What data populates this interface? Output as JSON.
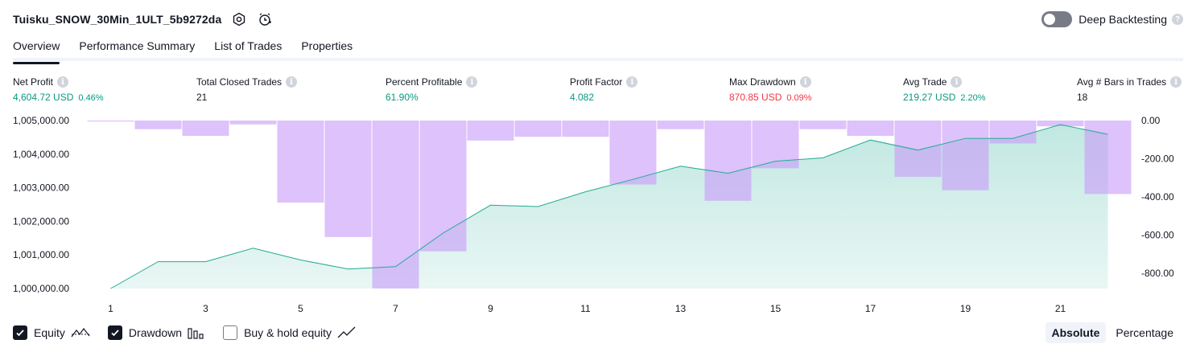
{
  "header": {
    "strategy_name": "Tuisku_SNOW_30Min_1ULT_5b9272da",
    "icons": [
      "settings-icon",
      "add-alert-icon"
    ]
  },
  "deep_backtesting": {
    "label": "Deep Backtesting",
    "enabled": false,
    "help_icon": "question-icon"
  },
  "tabs": [
    {
      "label": "Overview",
      "active": true
    },
    {
      "label": "Performance Summary",
      "active": false
    },
    {
      "label": "List of Trades",
      "active": false
    },
    {
      "label": "Properties",
      "active": false
    }
  ],
  "metrics": [
    {
      "label": "Net Profit",
      "value": "4,604.72 USD",
      "percent": "0.46%",
      "color": "#089981"
    },
    {
      "label": "Total Closed Trades",
      "value": "21",
      "percent": "",
      "color": "#131722"
    },
    {
      "label": "Percent Profitable",
      "value": "61.90%",
      "percent": "",
      "color": "#089981"
    },
    {
      "label": "Profit Factor",
      "value": "4.082",
      "percent": "",
      "color": "#089981"
    },
    {
      "label": "Max Drawdown",
      "value": "870.85 USD",
      "percent": "0.09%",
      "color": "#f23645"
    },
    {
      "label": "Avg Trade",
      "value": "219.27 USD",
      "percent": "2.20%",
      "color": "#089981"
    },
    {
      "label": "Avg # Bars in Trades",
      "value": "18",
      "percent": "",
      "color": "#131722"
    }
  ],
  "chart_data": {
    "type": "line",
    "x": [
      1,
      2,
      3,
      4,
      5,
      6,
      7,
      8,
      9,
      10,
      11,
      12,
      13,
      14,
      15,
      16,
      17,
      18,
      19,
      20,
      21,
      22
    ],
    "x_tick_labels": [
      "1",
      "3",
      "5",
      "7",
      "9",
      "11",
      "13",
      "15",
      "17",
      "19",
      "21"
    ],
    "left_axis": {
      "ylim": [
        1000000,
        1005000
      ],
      "tick_labels": [
        "1,005,000.00",
        "1,004,000.00",
        "1,003,000.00",
        "1,002,000.00",
        "1,001,000.00",
        "1,000,000.00"
      ],
      "tick_values": [
        1005000,
        1004000,
        1003000,
        1002000,
        1001000,
        1000000
      ]
    },
    "right_axis": {
      "ylim": [
        -880,
        0
      ],
      "tick_labels": [
        "0.00",
        "-200.00",
        "-400.00",
        "-600.00",
        "-800.00"
      ],
      "tick_values": [
        0,
        -200,
        -400,
        -600,
        -800
      ]
    },
    "series": [
      {
        "name": "Equity",
        "kind": "area",
        "axis": "left",
        "color": "#22ab94",
        "values": [
          1000000,
          1000800,
          1000800,
          1001200,
          1000850,
          1000580,
          1000650,
          1001650,
          1002480,
          1002440,
          1002880,
          1003250,
          1003640,
          1003430,
          1003790,
          1003890,
          1004420,
          1004120,
          1004470,
          1004470,
          1004880,
          1004590
        ]
      },
      {
        "name": "Drawdown",
        "kind": "bar",
        "axis": "right",
        "color": "#c89cf8",
        "values": [
          -5,
          -45,
          -80,
          -20,
          -430,
          -610,
          -880,
          -685,
          -105,
          -85,
          -85,
          -335,
          -45,
          -420,
          -250,
          -45,
          -80,
          -295,
          -365,
          -120,
          -30,
          -385
        ]
      }
    ],
    "grid": false
  },
  "legend": [
    {
      "label": "Equity",
      "checked": true,
      "icon": "equity-line-icon"
    },
    {
      "label": "Drawdown",
      "checked": true,
      "icon": "drawdown-bars-icon"
    },
    {
      "label": "Buy & hold equity",
      "checked": false,
      "icon": "buy-hold-line-icon"
    }
  ],
  "mode": {
    "options": [
      "Absolute",
      "Percentage"
    ],
    "selected": "Absolute"
  }
}
